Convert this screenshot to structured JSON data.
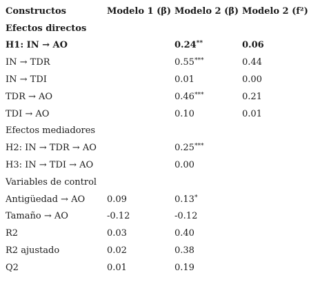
{
  "headers": [
    "Constructos",
    "Modelo 1 (β)",
    "Modelo 2 (β)",
    "Modelo 2 (f²)"
  ],
  "rows": [
    {
      "cells": [
        "Efectos directos",
        "",
        "",
        ""
      ],
      "bold": true
    },
    {
      "cells": [
        "H1: IN → AO",
        "",
        "0.24",
        "0.06"
      ],
      "sig": [
        "",
        "",
        "**",
        ""
      ],
      "bold": true
    },
    {
      "cells": [
        "IN → TDR",
        "",
        "0.55",
        "0.44"
      ],
      "sig": [
        "",
        "",
        "***",
        ""
      ]
    },
    {
      "cells": [
        "IN → TDI",
        "",
        "0.01",
        "0.00"
      ],
      "sig": [
        "",
        "",
        "",
        ""
      ]
    },
    {
      "cells": [
        "TDR → AO",
        "",
        "0.46",
        "0.21"
      ],
      "sig": [
        "",
        "",
        "***",
        ""
      ]
    },
    {
      "cells": [
        "TDI → AO",
        "",
        "0.10",
        "0.01"
      ],
      "sig": [
        "",
        "",
        "",
        ""
      ]
    },
    {
      "cells": [
        "Efectos mediadores",
        "",
        "",
        ""
      ]
    },
    {
      "cells": [
        "H2: IN → TDR → AO",
        "",
        "0.25",
        ""
      ],
      "sig": [
        "",
        "",
        "***",
        ""
      ]
    },
    {
      "cells": [
        "H3: IN → TDI → AO",
        "",
        "0.00",
        ""
      ],
      "sig": [
        "",
        "",
        "",
        ""
      ]
    },
    {
      "cells": [
        "Variables de control",
        "",
        "",
        ""
      ]
    },
    {
      "cells": [
        "Antigüedad → AO",
        "0.09",
        "0.13",
        ""
      ],
      "sig": [
        "",
        "",
        "*",
        ""
      ]
    },
    {
      "cells": [
        "Tamaño → AO",
        "-0.12",
        "-0.12",
        ""
      ],
      "sig": [
        "",
        "",
        "",
        ""
      ]
    },
    {
      "cells": [
        "R2",
        "0.03",
        "0.40",
        ""
      ],
      "sig": [
        "",
        "",
        "",
        ""
      ]
    },
    {
      "cells": [
        "R2 ajustado",
        "0.02",
        "0.38",
        ""
      ],
      "sig": [
        "",
        "",
        "",
        ""
      ]
    },
    {
      "cells": [
        "Q2",
        "0.01",
        "0.19",
        ""
      ],
      "sig": [
        "",
        "",
        "",
        ""
      ]
    }
  ]
}
